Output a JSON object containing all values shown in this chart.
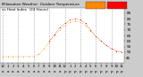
{
  "bg_color": "#cccccc",
  "plot_bg": "#ffffff",
  "legend_temp_color": "#ff8800",
  "legend_heat_color": "#ff0000",
  "grid_color": "#888888",
  "ymin": 40,
  "ymax": 90,
  "ytick_positions": [
    45,
    50,
    55,
    60,
    65,
    70,
    75,
    80,
    85
  ],
  "ytick_labels": [
    "45",
    "50",
    "55",
    "60",
    "65",
    "70",
    "75",
    "80",
    "85"
  ],
  "hours": [
    0,
    1,
    2,
    3,
    4,
    5,
    6,
    7,
    8,
    9,
    10,
    11,
    12,
    13,
    14,
    15,
    16,
    17,
    18,
    19,
    20,
    21,
    22,
    23
  ],
  "temp": [
    46,
    46,
    46,
    46,
    46,
    46,
    46,
    48,
    53,
    59,
    65,
    70,
    74,
    77,
    78,
    77,
    74,
    69,
    64,
    60,
    56,
    53,
    51,
    50
  ],
  "heat_index": [
    null,
    null,
    null,
    null,
    null,
    null,
    null,
    null,
    null,
    60,
    66,
    72,
    76,
    79,
    80,
    79,
    76,
    70,
    64,
    60,
    56,
    53,
    51,
    50
  ],
  "temp_color": "#ff8800",
  "heat_color": "#cc0000",
  "x_tick_labels_top": [
    "12",
    "1",
    "2",
    "3",
    "4",
    "5",
    "6",
    "7",
    "8",
    "9",
    "10",
    "11",
    "12",
    "1",
    "2",
    "3",
    "4",
    "5",
    "6",
    "7",
    "8",
    "9",
    "10",
    "11"
  ],
  "x_tick_labels_bot": [
    "a",
    "a",
    "a",
    "a",
    "a",
    "a",
    "a",
    "a",
    "a",
    "a",
    "a",
    "a",
    "p",
    "p",
    "p",
    "p",
    "p",
    "p",
    "p",
    "p",
    "p",
    "p",
    "p",
    "p"
  ],
  "title_text": "Milwaukee Weather  Outdoor Temperature",
  "title_text2": "vs Heat Index  (24 Hours)",
  "title_fontsize": 3.0,
  "axis_fontsize": 3.0
}
